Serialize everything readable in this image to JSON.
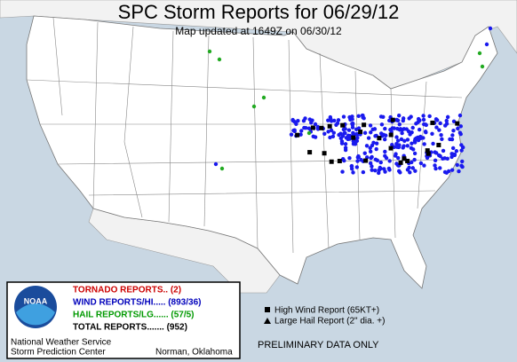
{
  "header": {
    "title": "SPC Storm Reports for 06/29/12",
    "subtitle": "Map updated at 1649Z on 06/30/12"
  },
  "legend": {
    "logo": "NOAA",
    "rows": [
      "TORNADO REPORTS.. (2)",
      "WIND REPORTS/HI..... (893/36)",
      "HAIL REPORTS/LG...... (57/5)",
      "TOTAL REPORTS....... (952)"
    ],
    "agency": "National Weather Service",
    "center": "Storm Prediction Center",
    "location": "Norman, Oklahoma"
  },
  "key": {
    "items": [
      "High Wind Report (65KT+)",
      "Large Hail Report (2\" dia. +)"
    ],
    "note": "PRELIMINARY DATA ONLY"
  }
}
